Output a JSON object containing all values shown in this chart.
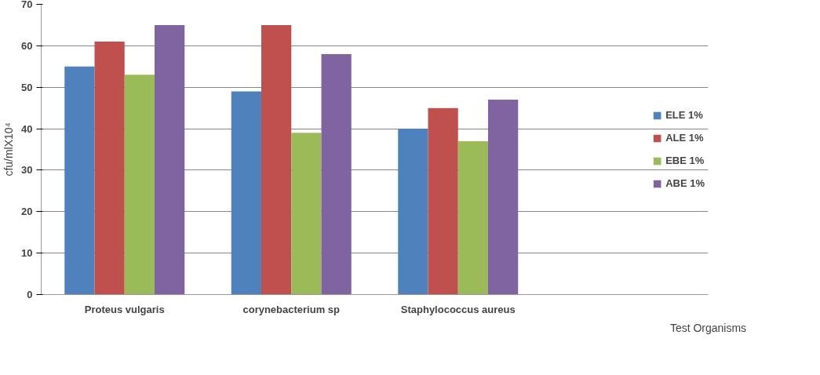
{
  "chart_data": {
    "type": "bar",
    "xlabel": "Test Organisms",
    "ylabel": "cfu/mlX10⁴",
    "categories": [
      "Proteus vulgaris",
      "corynebacterium sp",
      "Staphylococcus aureus",
      null
    ],
    "series": [
      {
        "name": "ELE 1%",
        "color": "#4f81bd",
        "values": [
          55,
          49,
          40,
          null
        ]
      },
      {
        "name": "ALE 1%",
        "color": "#c0504d",
        "values": [
          61,
          65,
          45,
          null
        ]
      },
      {
        "name": "EBE 1%",
        "color": "#9bbb59",
        "values": [
          53,
          39,
          37,
          null
        ]
      },
      {
        "name": "ABE 1%",
        "color": "#8064a2",
        "values": [
          65,
          58,
          47,
          null
        ]
      }
    ],
    "ylim": [
      0,
      70
    ],
    "yticks": [
      0,
      10,
      20,
      30,
      40,
      50,
      60,
      70
    ],
    "grid": "y",
    "legend": "right"
  }
}
